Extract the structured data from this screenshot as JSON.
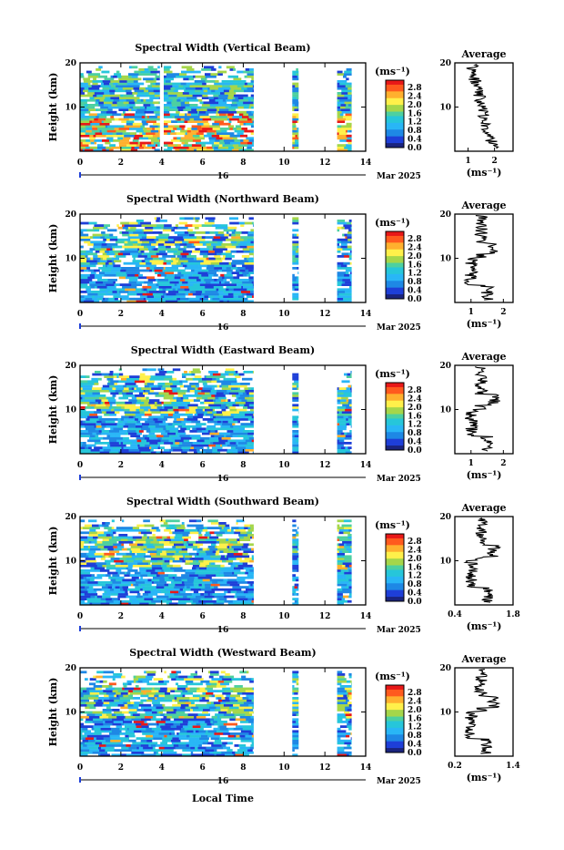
{
  "x_axis_label": "Local Time",
  "date_label": "Mar 2025",
  "day_label": "16",
  "y_axis_label": "Height (km)",
  "avg_title": "Average",
  "unit_label": "(ms⁻¹)",
  "colorbar_ticks": [
    "2.8",
    "2.4",
    "2.0",
    "1.6",
    "1.2",
    "0.8",
    "0.4",
    "0.0"
  ],
  "colors": {
    "scale": [
      "#1a237e",
      "#1e3fd8",
      "#1e88e5",
      "#29b6f6",
      "#26c6da",
      "#4dd0a0",
      "#a5d64a",
      "#fff04a",
      "#ffb02e",
      "#ff5a1e",
      "#e81818"
    ]
  },
  "chart_data": [
    {
      "type": "heatmap",
      "title": "Spectral Width (Vertical Beam)",
      "xlim": [
        0,
        14
      ],
      "ylim": [
        0,
        20
      ],
      "xticks": [
        "0",
        "2",
        "4",
        "6",
        "8",
        "10",
        "12",
        "14"
      ],
      "yticks": [
        "10",
        "20"
      ],
      "coverage": [
        [
          0,
          3.9
        ],
        [
          4.1,
          8.5
        ],
        [
          10.4,
          10.7
        ],
        [
          12.6,
          13.3
        ]
      ],
      "average": {
        "xlim": [
          0.5,
          2.7
        ],
        "xticks": [
          "1",
          "2"
        ],
        "yticks": [
          "10",
          "20"
        ]
      }
    },
    {
      "type": "heatmap",
      "title": "Spectral Width (Northward Beam)",
      "xlim": [
        0,
        14
      ],
      "ylim": [
        0,
        20
      ],
      "xticks": [
        "0",
        "2",
        "4",
        "6",
        "8",
        "10",
        "12",
        "14"
      ],
      "yticks": [
        "10",
        "20"
      ],
      "coverage": [
        [
          0,
          8.5
        ],
        [
          10.4,
          10.7
        ],
        [
          12.6,
          13.3
        ]
      ],
      "average": {
        "xlim": [
          0.5,
          2.3
        ],
        "xticks": [
          "1",
          "2"
        ],
        "yticks": [
          "10",
          "20"
        ]
      }
    },
    {
      "type": "heatmap",
      "title": "Spectral Width (Eastward Beam)",
      "xlim": [
        0,
        14
      ],
      "ylim": [
        0,
        20
      ],
      "xticks": [
        "0",
        "2",
        "4",
        "6",
        "8",
        "10",
        "12",
        "14"
      ],
      "yticks": [
        "10",
        "20"
      ],
      "coverage": [
        [
          0,
          8.5
        ],
        [
          10.4,
          10.7
        ],
        [
          12.6,
          13.3
        ]
      ],
      "average": {
        "xlim": [
          0.5,
          2.3
        ],
        "xticks": [
          "1",
          "2"
        ],
        "yticks": [
          "10",
          "20"
        ]
      }
    },
    {
      "type": "heatmap",
      "title": "Spectral Width (Southward Beam)",
      "xlim": [
        0,
        14
      ],
      "ylim": [
        0,
        20
      ],
      "xticks": [
        "0",
        "2",
        "4",
        "6",
        "8",
        "10",
        "12",
        "14"
      ],
      "yticks": [
        "10",
        "20"
      ],
      "coverage": [
        [
          0,
          8.5
        ],
        [
          10.4,
          10.7
        ],
        [
          12.6,
          13.3
        ]
      ],
      "average": {
        "xlim": [
          0.4,
          1.8
        ],
        "xticks": [
          "0.4",
          "1.8"
        ],
        "yticks": [
          "10",
          "20"
        ]
      }
    },
    {
      "type": "heatmap",
      "title": "Spectral Width (Westward Beam)",
      "xlim": [
        0,
        14
      ],
      "ylim": [
        0,
        20
      ],
      "xticks": [
        "0",
        "2",
        "4",
        "6",
        "8",
        "10",
        "12",
        "14"
      ],
      "yticks": [
        "10",
        "20"
      ],
      "coverage": [
        [
          0,
          8.5
        ],
        [
          10.4,
          10.7
        ],
        [
          12.6,
          13.3
        ]
      ],
      "average": {
        "xlim": [
          0.2,
          1.4
        ],
        "xticks": [
          "0.2",
          "1.4"
        ],
        "yticks": [
          "10",
          "20"
        ]
      }
    }
  ]
}
